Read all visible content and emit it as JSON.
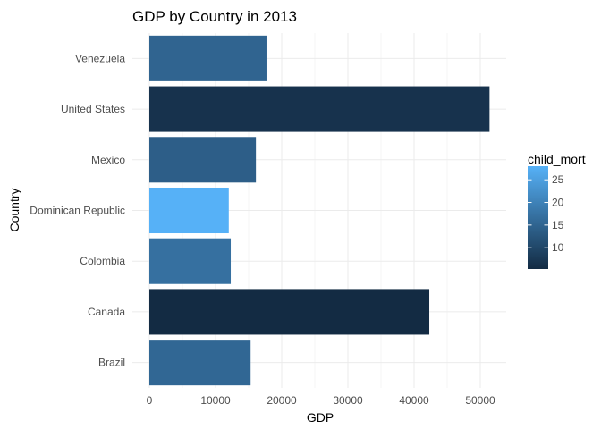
{
  "chart_data": {
    "type": "bar",
    "orientation": "horizontal",
    "title": "GDP by Country in 2013",
    "xlabel": "GDP",
    "ylabel": "Country",
    "xlim": [
      0,
      54000
    ],
    "x_ticks": [
      0,
      10000,
      20000,
      30000,
      40000,
      50000
    ],
    "x_tick_labels": [
      "0",
      "10000",
      "20000",
      "30000",
      "40000",
      "50000"
    ],
    "categories": [
      "Brazil",
      "Canada",
      "Colombia",
      "Dominican Republic",
      "Mexico",
      "United States",
      "Venezuela"
    ],
    "values": [
      15300,
      42300,
      12300,
      12000,
      16100,
      51400,
      17700
    ],
    "child_mort": [
      15.5,
      5.3,
      17.0,
      28.0,
      14.0,
      6.5,
      15.0
    ],
    "grid": true,
    "legend": {
      "title": "child_mort",
      "position": "right",
      "range": [
        5.3,
        28.0
      ],
      "ticks": [
        10,
        15,
        20,
        25
      ],
      "tick_labels": [
        "10",
        "15",
        "20",
        "25"
      ],
      "color_low": "#132B43",
      "color_high": "#56B1F7"
    }
  }
}
